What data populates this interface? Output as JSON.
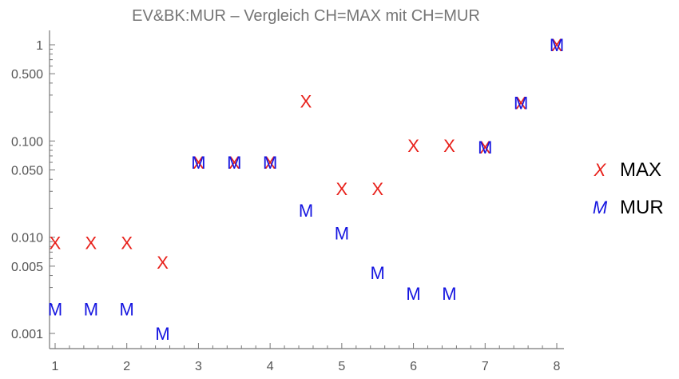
{
  "chart_data": {
    "type": "scatter",
    "title": "EV&BK:MUR – Vergleich CH=MAX mit CH=MUR",
    "xlabel": "",
    "ylabel": "",
    "xlim": [
      1,
      8
    ],
    "ylim": [
      0.0008,
      1.4
    ],
    "yscale": "log",
    "x_ticks": [
      1,
      2,
      3,
      4,
      5,
      6,
      7,
      8
    ],
    "x_tick_labels": [
      "1",
      "2",
      "3",
      "4",
      "5",
      "6",
      "7",
      "8"
    ],
    "y_ticks": [
      0.001,
      0.005,
      0.01,
      0.05,
      0.1,
      0.5,
      1
    ],
    "y_tick_labels": [
      "0.001",
      "0.005",
      "0.010",
      "0.050",
      "0.100",
      "0.500",
      "1"
    ],
    "grid": false,
    "legend_position": "right",
    "series": [
      {
        "name": "MAX",
        "marker": "X",
        "color": "#e8211b",
        "x": [
          1,
          1.5,
          2,
          2.5,
          3,
          3.5,
          4,
          4.5,
          5,
          5.5,
          6,
          6.5,
          7,
          7.5,
          8
        ],
        "y": [
          0.0088,
          0.0088,
          0.0088,
          0.0055,
          0.06,
          0.06,
          0.06,
          0.26,
          0.032,
          0.032,
          0.09,
          0.09,
          0.086,
          0.25,
          1
        ]
      },
      {
        "name": "MUR",
        "marker": "M",
        "color": "#1414e0",
        "x": [
          1,
          1.5,
          2,
          2.5,
          3,
          3.5,
          4,
          4.5,
          5,
          5.5,
          6,
          6.5,
          7,
          7.5,
          8
        ],
        "y": [
          0.0018,
          0.0018,
          0.0018,
          0.001,
          0.06,
          0.06,
          0.06,
          0.019,
          0.011,
          0.0043,
          0.0026,
          0.0026,
          0.086,
          0.25,
          1
        ]
      }
    ]
  }
}
